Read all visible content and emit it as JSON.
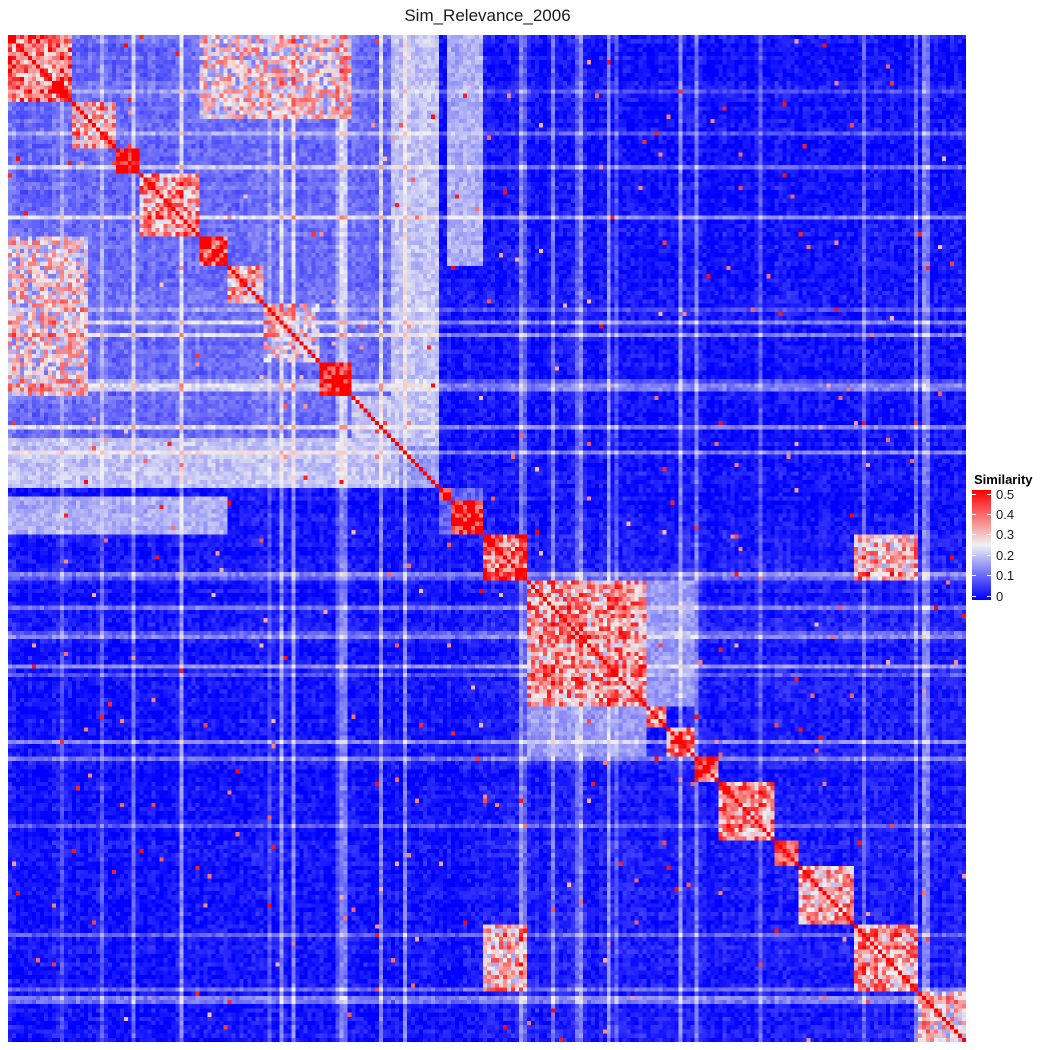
{
  "chart_data": {
    "type": "heatmap",
    "title": "Sim_Relevance_2006",
    "xlabel": "",
    "ylabel": "",
    "grid": false,
    "legend_position": "right",
    "legend": {
      "title": "Similarity",
      "ticks": [
        0,
        0.1,
        0.2,
        0.3,
        0.4,
        0.5
      ],
      "tick_labels": [
        "0",
        "0.1",
        "0.2",
        "0.3",
        "0.4",
        "0.5"
      ],
      "range": [
        0,
        0.5
      ]
    },
    "colorscale": {
      "low": "#0000ff",
      "mid": "#f2f2f2",
      "high": "#ff0000",
      "midpoint": 0.25
    },
    "matrix_size": 240,
    "diagonal_value": 0.5,
    "background_value": 0.02,
    "super_blocks": [
      {
        "range": [
          0,
          108
        ],
        "value": 0.11
      },
      {
        "range": [
          108,
          119
        ],
        "value": 0.1
      },
      {
        "range": [
          119,
          240
        ],
        "value": 0.03
      }
    ],
    "blocks": [
      {
        "range": [
          0,
          16
        ],
        "value": 0.38
      },
      {
        "range": [
          16,
          27
        ],
        "value": 0.3
      },
      {
        "range": [
          27,
          33
        ],
        "value": 0.48
      },
      {
        "range": [
          33,
          48
        ],
        "value": 0.34
      },
      {
        "range": [
          48,
          55
        ],
        "value": 0.45
      },
      {
        "range": [
          55,
          64
        ],
        "value": 0.32
      },
      {
        "range": [
          64,
          78
        ],
        "value": 0.24
      },
      {
        "range": [
          78,
          86
        ],
        "value": 0.44
      },
      {
        "range": [
          86,
          98
        ],
        "value": 0.2
      },
      {
        "range": [
          98,
          108
        ],
        "value": 0.16
      },
      {
        "range": [
          108,
          111
        ],
        "value": 0.45
      },
      {
        "range": [
          111,
          119
        ],
        "value": 0.48
      },
      {
        "range": [
          119,
          130
        ],
        "value": 0.4
      },
      {
        "range": [
          130,
          160
        ],
        "value": 0.33
      },
      {
        "range": [
          160,
          165
        ],
        "value": 0.38
      },
      {
        "range": [
          165,
          172
        ],
        "value": 0.36
      },
      {
        "range": [
          172,
          178
        ],
        "value": 0.4
      },
      {
        "range": [
          178,
          192
        ],
        "value": 0.35
      },
      {
        "range": [
          192,
          198
        ],
        "value": 0.46
      },
      {
        "range": [
          198,
          212
        ],
        "value": 0.33
      },
      {
        "range": [
          212,
          228
        ],
        "value": 0.32
      },
      {
        "range": [
          228,
          240
        ],
        "value": 0.28
      }
    ],
    "off_diagonal_regions": [
      {
        "rows": [
          0,
          108
        ],
        "cols": [
          96,
          108
        ],
        "value": 0.2
      },
      {
        "rows": [
          0,
          20
        ],
        "cols": [
          48,
          86
        ],
        "value": 0.26
      },
      {
        "rows": [
          33,
          55
        ],
        "cols": [
          0,
          30
        ],
        "value": 0.24
      },
      {
        "rows": [
          0,
          55
        ],
        "cols": [
          110,
          119
        ],
        "value": 0.18
      },
      {
        "rows": [
          119,
          130
        ],
        "cols": [
          212,
          228
        ],
        "value": 0.3
      },
      {
        "rows": [
          212,
          228
        ],
        "cols": [
          119,
          130
        ],
        "value": 0.3
      },
      {
        "rows": [
          130,
          160
        ],
        "cols": [
          160,
          172
        ],
        "value": 0.16
      },
      {
        "rows": [
          160,
          172
        ],
        "cols": [
          130,
          160
        ],
        "value": 0.16
      },
      {
        "rows": [
          165,
          175
        ],
        "cols": [
          119,
          150
        ],
        "value": 0.2
      },
      {
        "rows": [
          230,
          240
        ],
        "cols": [
          119,
          130
        ],
        "value": 0.22
      },
      {
        "rows": [
          185,
          198
        ],
        "cols": [
          172,
          178
        ],
        "value": 0.2
      }
    ]
  }
}
